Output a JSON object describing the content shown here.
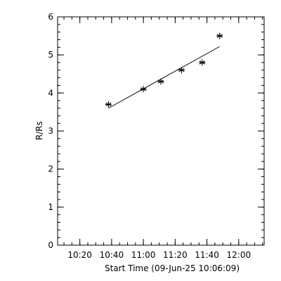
{
  "chart_data": {
    "type": "scatter",
    "title": "",
    "xlabel": "Start Time (09-Jun-25 10:06:09)",
    "ylabel": "R/Rs",
    "x_ticks": [
      {
        "value": "10:20",
        "label": "10:20"
      },
      {
        "value": "10:40",
        "label": "10:40"
      },
      {
        "value": "11:00",
        "label": "11:00"
      },
      {
        "value": "11:20",
        "label": "11:20"
      },
      {
        "value": "11:40",
        "label": "11:40"
      },
      {
        "value": "12:00",
        "label": "12:00"
      }
    ],
    "x_minor_step_minutes": 5,
    "xlim": [
      "10:06",
      "12:16"
    ],
    "ylim": [
      0,
      6
    ],
    "y_ticks": [
      0,
      1,
      2,
      3,
      4,
      5,
      6
    ],
    "y_minor_step": 0.2,
    "grid": false,
    "marker": "asterisk",
    "series": [
      {
        "points": [
          {
            "x": "10:38",
            "y": 3.7
          },
          {
            "x": "11:00",
            "y": 4.1
          },
          {
            "x": "11:11",
            "y": 4.3
          },
          {
            "x": "11:24",
            "y": 4.6
          },
          {
            "x": "11:37",
            "y": 4.8
          },
          {
            "x": "11:48",
            "y": 5.5
          }
        ]
      }
    ],
    "fit_line": {
      "start": {
        "x": "10:38",
        "y": 3.6
      },
      "end": {
        "x": "11:48",
        "y": 5.22
      }
    }
  }
}
